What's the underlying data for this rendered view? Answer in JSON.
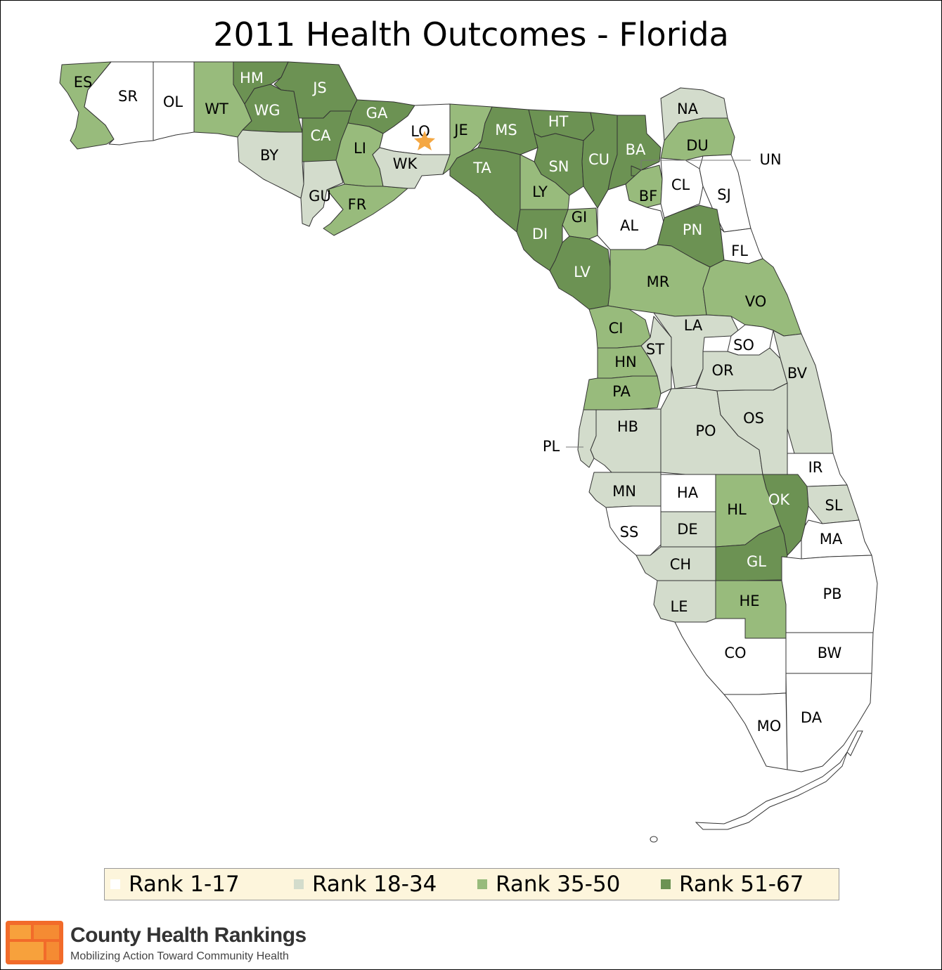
{
  "title": "2011 Health Outcomes - Florida",
  "colors": {
    "rank_1_17": "#ffffff",
    "rank_18_34": "#d3dccc",
    "rank_35_50": "#98bb7c",
    "rank_51_67": "#6c9253",
    "star": "#f4a742",
    "legend_bg": "#fdf5dc"
  },
  "legend": [
    {
      "label": "Rank 1-17",
      "tier": "rank_1_17"
    },
    {
      "label": "Rank 18-34",
      "tier": "rank_18_34"
    },
    {
      "label": "Rank 35-50",
      "tier": "rank_35_50"
    },
    {
      "label": "Rank 51-67",
      "tier": "rank_51_67"
    }
  ],
  "counties": [
    {
      "code": "ES",
      "tier": "rank_35_50"
    },
    {
      "code": "SR",
      "tier": "rank_1_17"
    },
    {
      "code": "OL",
      "tier": "rank_1_17"
    },
    {
      "code": "WT",
      "tier": "rank_35_50"
    },
    {
      "code": "HM",
      "tier": "rank_51_67"
    },
    {
      "code": "JS",
      "tier": "rank_51_67"
    },
    {
      "code": "WG",
      "tier": "rank_51_67"
    },
    {
      "code": "CA",
      "tier": "rank_51_67"
    },
    {
      "code": "BY",
      "tier": "rank_18_34"
    },
    {
      "code": "GU",
      "tier": "rank_18_34"
    },
    {
      "code": "GA",
      "tier": "rank_51_67"
    },
    {
      "code": "LI",
      "tier": "rank_35_50"
    },
    {
      "code": "FR",
      "tier": "rank_35_50"
    },
    {
      "code": "LO",
      "tier": "rank_1_17"
    },
    {
      "code": "WK",
      "tier": "rank_18_34"
    },
    {
      "code": "JE",
      "tier": "rank_35_50"
    },
    {
      "code": "MS",
      "tier": "rank_51_67"
    },
    {
      "code": "TA",
      "tier": "rank_51_67"
    },
    {
      "code": "HT",
      "tier": "rank_51_67"
    },
    {
      "code": "SN",
      "tier": "rank_51_67"
    },
    {
      "code": "CU",
      "tier": "rank_51_67"
    },
    {
      "code": "LY",
      "tier": "rank_35_50"
    },
    {
      "code": "BA",
      "tier": "rank_51_67"
    },
    {
      "code": "NA",
      "tier": "rank_18_34"
    },
    {
      "code": "DU",
      "tier": "rank_35_50"
    },
    {
      "code": "UN",
      "tier": "rank_51_67"
    },
    {
      "code": "BF",
      "tier": "rank_35_50"
    },
    {
      "code": "CL",
      "tier": "rank_1_17"
    },
    {
      "code": "SJ",
      "tier": "rank_1_17"
    },
    {
      "code": "GI",
      "tier": "rank_35_50"
    },
    {
      "code": "DI",
      "tier": "rank_51_67"
    },
    {
      "code": "AL",
      "tier": "rank_1_17"
    },
    {
      "code": "PN",
      "tier": "rank_51_67"
    },
    {
      "code": "FL",
      "tier": "rank_1_17"
    },
    {
      "code": "LV",
      "tier": "rank_51_67"
    },
    {
      "code": "MR",
      "tier": "rank_35_50"
    },
    {
      "code": "VO",
      "tier": "rank_35_50"
    },
    {
      "code": "CI",
      "tier": "rank_35_50"
    },
    {
      "code": "LA",
      "tier": "rank_18_34"
    },
    {
      "code": "SO",
      "tier": "rank_1_17"
    },
    {
      "code": "ST",
      "tier": "rank_18_34"
    },
    {
      "code": "HN",
      "tier": "rank_35_50"
    },
    {
      "code": "OR",
      "tier": "rank_18_34"
    },
    {
      "code": "BV",
      "tier": "rank_18_34"
    },
    {
      "code": "PA",
      "tier": "rank_35_50"
    },
    {
      "code": "HB",
      "tier": "rank_18_34"
    },
    {
      "code": "PL",
      "tier": "rank_18_34"
    },
    {
      "code": "PO",
      "tier": "rank_18_34"
    },
    {
      "code": "OS",
      "tier": "rank_18_34"
    },
    {
      "code": "IR",
      "tier": "rank_1_17"
    },
    {
      "code": "MN",
      "tier": "rank_18_34"
    },
    {
      "code": "HA",
      "tier": "rank_1_17"
    },
    {
      "code": "HL",
      "tier": "rank_35_50"
    },
    {
      "code": "OK",
      "tier": "rank_51_67"
    },
    {
      "code": "SL",
      "tier": "rank_18_34"
    },
    {
      "code": "SS",
      "tier": "rank_1_17"
    },
    {
      "code": "DE",
      "tier": "rank_18_34"
    },
    {
      "code": "MA",
      "tier": "rank_1_17"
    },
    {
      "code": "GL",
      "tier": "rank_51_67"
    },
    {
      "code": "CH",
      "tier": "rank_18_34"
    },
    {
      "code": "PB",
      "tier": "rank_1_17"
    },
    {
      "code": "HE",
      "tier": "rank_35_50"
    },
    {
      "code": "LE",
      "tier": "rank_18_34"
    },
    {
      "code": "CO",
      "tier": "rank_1_17"
    },
    {
      "code": "BW",
      "tier": "rank_1_17"
    },
    {
      "code": "MO",
      "tier": "rank_1_17"
    },
    {
      "code": "DA",
      "tier": "rank_1_17"
    }
  ],
  "capital_marker": {
    "county": "LO",
    "icon": "star-icon"
  },
  "brand": {
    "name": "County Health Rankings",
    "tagline": "Mobilizing Action Toward Community Health",
    "logo_icon": "county-health-rankings-logo"
  }
}
